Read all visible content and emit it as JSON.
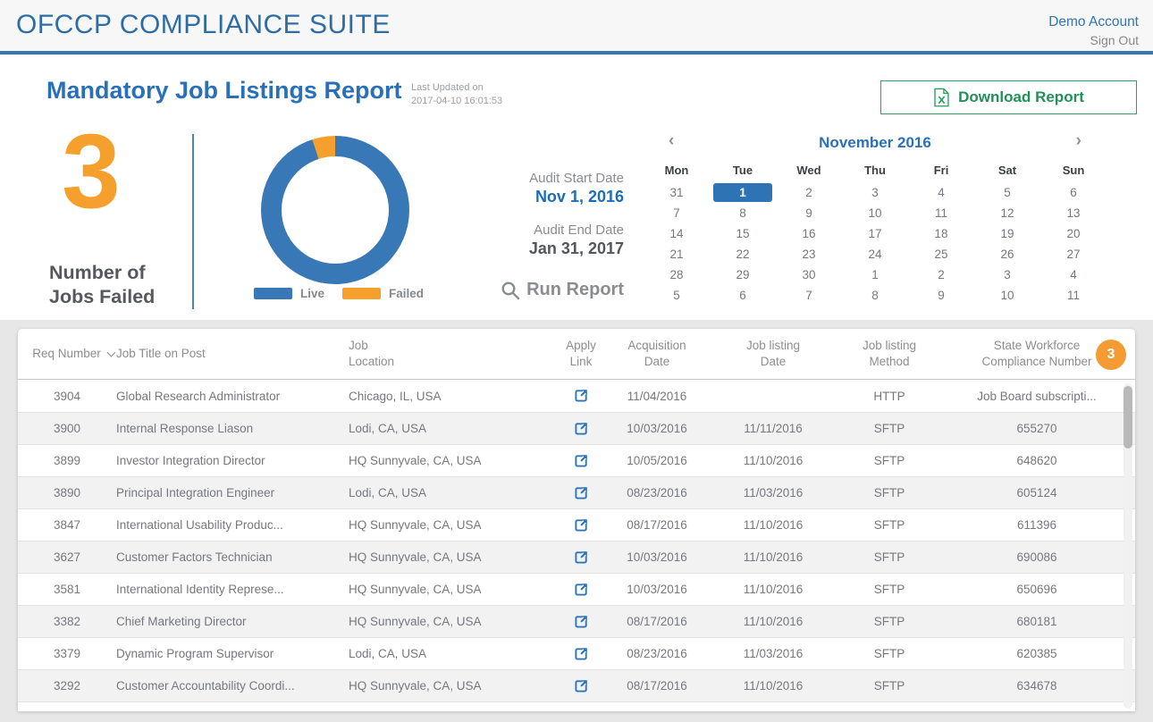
{
  "header": {
    "brand": "OFCCP COMPLIANCE SUITE",
    "account_name": "Demo Account",
    "sign_out": "Sign Out"
  },
  "report": {
    "title": "Mandatory Job Listings Report",
    "last_updated_label": "Last Updated on",
    "last_updated_value": "2017-04-10 16:01:53",
    "download_label": "Download Report",
    "download_icon": "excel-file",
    "accent_green": "#1e9257"
  },
  "summary": {
    "failed_count": "3",
    "caption_line1": "Number of",
    "caption_line2": "Jobs Failed",
    "count_color": "#f5a02d"
  },
  "chart_data": {
    "type": "donut",
    "title": "Live vs Failed job listings",
    "series": [
      {
        "name": "Live",
        "value_pct": 95,
        "color": "#3878b6"
      },
      {
        "name": "Failed",
        "value_pct": 5,
        "color": "#f5a02d"
      }
    ],
    "legend_position": "bottom",
    "failed_slice_ends_at_deg": 360
  },
  "filters": {
    "audit_start_label": "Audit Start Date",
    "audit_start_value": "Nov 1, 2016",
    "audit_end_label": "Audit End Date",
    "audit_end_value": "Jan 31, 2017",
    "run_report_label": "Run Report",
    "run_report_icon": "magnifier"
  },
  "calendar": {
    "title": "November 2016",
    "prev_icon": "‹",
    "next_icon": "›",
    "weekdays": [
      "Mon",
      "Tue",
      "Wed",
      "Thu",
      "Fri",
      "Sat",
      "Sun"
    ],
    "weeks": [
      [
        "31",
        "1",
        "2",
        "3",
        "4",
        "5",
        "6"
      ],
      [
        "7",
        "8",
        "9",
        "10",
        "11",
        "12",
        "13"
      ],
      [
        "14",
        "15",
        "16",
        "17",
        "18",
        "19",
        "20"
      ],
      [
        "21",
        "22",
        "23",
        "24",
        "25",
        "26",
        "27"
      ],
      [
        "28",
        "29",
        "30",
        "1",
        "2",
        "3",
        "4"
      ],
      [
        "5",
        "6",
        "7",
        "8",
        "9",
        "10",
        "11"
      ]
    ],
    "selected": {
      "week": 0,
      "day": 1,
      "selected_color": "#2e73b4"
    }
  },
  "table": {
    "badge_count": "3",
    "badge_color": "#f49b33",
    "headers": [
      {
        "l1": "Req Number",
        "l2": "",
        "align": "center",
        "sortable": true
      },
      {
        "l1": "Job Title on Post",
        "l2": "",
        "align": "left",
        "sortable": false
      },
      {
        "l1": "Job",
        "l2": "Location",
        "align": "left",
        "sortable": false
      },
      {
        "l1": "Apply",
        "l2": "Link",
        "align": "center",
        "sortable": false
      },
      {
        "l1": "Acquisition",
        "l2": "Date",
        "align": "center",
        "sortable": false
      },
      {
        "l1": "Job listing",
        "l2": "Date",
        "align": "center",
        "sortable": false
      },
      {
        "l1": "Job listing",
        "l2": "Method",
        "align": "center",
        "sortable": false
      },
      {
        "l1": "State Workforce",
        "l2": "Compliance Number",
        "align": "center",
        "sortable": false
      }
    ],
    "apply_link_icon": "external-link",
    "rows": [
      [
        "3904",
        "Global Research Administrator",
        "Chicago, IL, USA",
        "11/04/2016",
        "",
        "HTTP",
        "Job Board subscripti..."
      ],
      [
        "3900",
        "Internal Response Liason",
        "Lodi, CA, USA",
        "10/03/2016",
        "11/11/2016",
        "SFTP",
        "655270"
      ],
      [
        "3899",
        "Investor Integration Director",
        "HQ Sunnyvale, CA, USA",
        "10/05/2016",
        "11/10/2016",
        "SFTP",
        "648620"
      ],
      [
        "3890",
        "Principal Integration Engineer",
        "Lodi, CA, USA",
        "08/23/2016",
        "11/03/2016",
        "SFTP",
        "605124"
      ],
      [
        "3847",
        "International Usability Produc...",
        "HQ Sunnyvale, CA, USA",
        "08/17/2016",
        "11/10/2016",
        "SFTP",
        "611396"
      ],
      [
        "3627",
        "Customer Factors Technician",
        "HQ Sunnyvale, CA, USA",
        "10/03/2016",
        "11/10/2016",
        "SFTP",
        "690086"
      ],
      [
        "3581",
        "International Identity Represe...",
        "HQ Sunnyvale, CA, USA",
        "10/03/2016",
        "11/10/2016",
        "SFTP",
        "650696"
      ],
      [
        "3382",
        "Chief Marketing Director",
        "HQ Sunnyvale, CA, USA",
        "08/17/2016",
        "11/10/2016",
        "SFTP",
        "680181"
      ],
      [
        "3379",
        "Dynamic Program Supervisor",
        "Lodi, CA, USA",
        "08/23/2016",
        "11/03/2016",
        "SFTP",
        "620385"
      ],
      [
        "3292",
        "Customer Accountability Coordi...",
        "HQ Sunnyvale, CA, USA",
        "08/17/2016",
        "11/10/2016",
        "SFTP",
        "634678"
      ],
      [
        "",
        "",
        "",
        "",
        "",
        "",
        ""
      ]
    ]
  }
}
